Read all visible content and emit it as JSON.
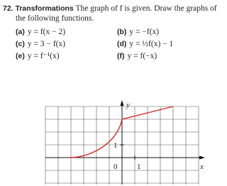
{
  "problem": {
    "number": "72.",
    "title": "Transformations",
    "text": "The graph of f is given. Draw the graphs of the following functions.",
    "parts": [
      {
        "label": "(a)",
        "expr": "y = f(x − 2)"
      },
      {
        "label": "(b)",
        "expr": "y = −f(x)"
      },
      {
        "label": "(c)",
        "expr": "y = 3 − f(x)"
      },
      {
        "label": "(d)",
        "expr": "y = ½f(x) − 1"
      },
      {
        "label": "(e)",
        "expr": "y = f⁻¹(x)"
      },
      {
        "label": "(f)",
        "expr": "y = f(−x)"
      }
    ]
  },
  "graph": {
    "y_label": "y",
    "x_label": "x",
    "origin_label": "0",
    "x_tick_label": "1",
    "y_tick_label": "1"
  }
}
